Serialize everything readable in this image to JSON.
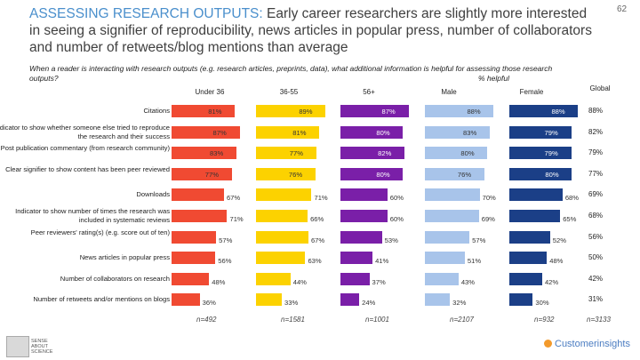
{
  "header": {
    "title_lead": "ASSESSING RESEARCH OUTPUTS:",
    "title_rest": " Early career researchers are slightly more interested in seeing a signifier of reproducibility, news articles in popular press, number of collaborators and number of retweets/blog mentions than average",
    "page_number": "62",
    "question": "When a reader is interacting with research outputs (e.g. research articles, preprints, data), what additional information is helpful for assessing those research outputs?",
    "unit_label": "% helpful"
  },
  "chart_data": {
    "type": "bar",
    "orientation": "horizontal",
    "categories": [
      "Citations",
      "Indicator to show whether someone else tried to reproduce the research and their success",
      "Post publication commentary (from research community)",
      "Clear signifier to show content has been peer reviewed",
      "Downloads",
      "Indicator to show number of times the research was included in systematic reviews",
      "Peer reviewers' rating(s) (e.g. score out of ten)",
      "News articles in popular press",
      "Number of collaborators on research",
      "Number of retweets and/or mentions on blogs"
    ],
    "series": [
      {
        "name": "Under 36",
        "color": "#f04a32",
        "values": [
          81,
          87,
          83,
          77,
          67,
          71,
          57,
          56,
          48,
          36
        ],
        "n": "n=492"
      },
      {
        "name": "36-55",
        "color": "#fcd200",
        "values": [
          89,
          81,
          77,
          76,
          71,
          66,
          67,
          63,
          44,
          33
        ],
        "n": "n=1581"
      },
      {
        "name": "56+",
        "color": "#7a1fa8",
        "values": [
          87,
          80,
          82,
          80,
          60,
          60,
          53,
          41,
          37,
          24
        ],
        "n": "n=1001"
      },
      {
        "name": "Male",
        "color": "#a8c4ea",
        "values": [
          88,
          83,
          80,
          76,
          70,
          69,
          57,
          51,
          43,
          32
        ],
        "n": "n=2107"
      },
      {
        "name": "Female",
        "color": "#1b3f87",
        "values": [
          88,
          79,
          79,
          80,
          68,
          65,
          52,
          48,
          42,
          30
        ],
        "n": "n=932"
      }
    ],
    "global": {
      "name": "Global",
      "values": [
        88,
        82,
        79,
        77,
        69,
        68,
        56,
        50,
        42,
        31
      ],
      "n": "n=3133"
    },
    "value_suffix": "%",
    "xlim": [
      0,
      100
    ]
  },
  "logos": {
    "left_text": "SENSE ABOUT SCIENCE",
    "right_text": "Customerinsights"
  }
}
